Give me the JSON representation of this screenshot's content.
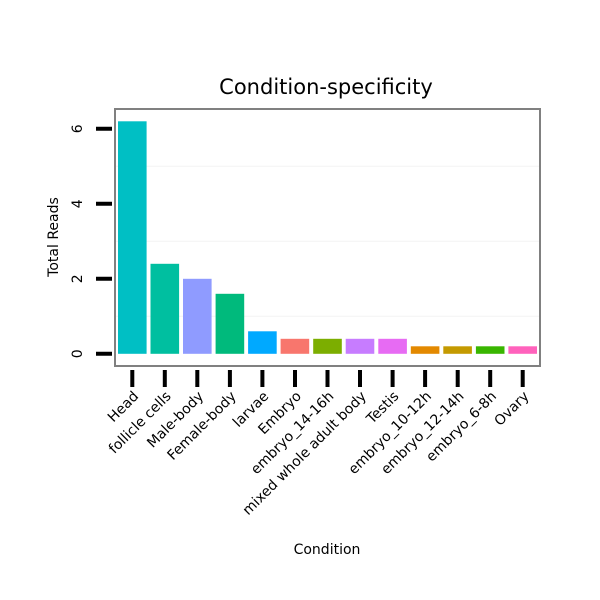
{
  "chart_data": {
    "type": "bar",
    "title": "Condition-specificity",
    "xlabel": "Condition",
    "ylabel": "Total Reads",
    "ylim": [
      -0.3,
      6.5
    ],
    "yticks": [
      0,
      2,
      4,
      6
    ],
    "yticklabels": [
      "0",
      "2",
      "4",
      "6"
    ],
    "categories": [
      "Head",
      "follicle cells",
      "Male-body",
      "Female-body",
      "larvae",
      "Embryo",
      "embryo_14-16h",
      "mixed whole adult body",
      "Testis",
      "embryo_10-12h",
      "embryo_12-14h",
      "embryo_6-8h",
      "Ovary"
    ],
    "values": [
      6.2,
      2.4,
      2.0,
      1.6,
      0.6,
      0.4,
      0.4,
      0.4,
      0.4,
      0.2,
      0.2,
      0.2,
      0.2
    ],
    "colors": [
      "#00BFC4",
      "#00BFA0",
      "#8F9BFF",
      "#00BA7C",
      "#00A9FF",
      "#F8766D",
      "#7CAE00",
      "#C77CFF",
      "#E76BF3",
      "#E38900",
      "#C49A00",
      "#39B600",
      "#FF62BC"
    ],
    "grid": true,
    "legend": "none"
  }
}
